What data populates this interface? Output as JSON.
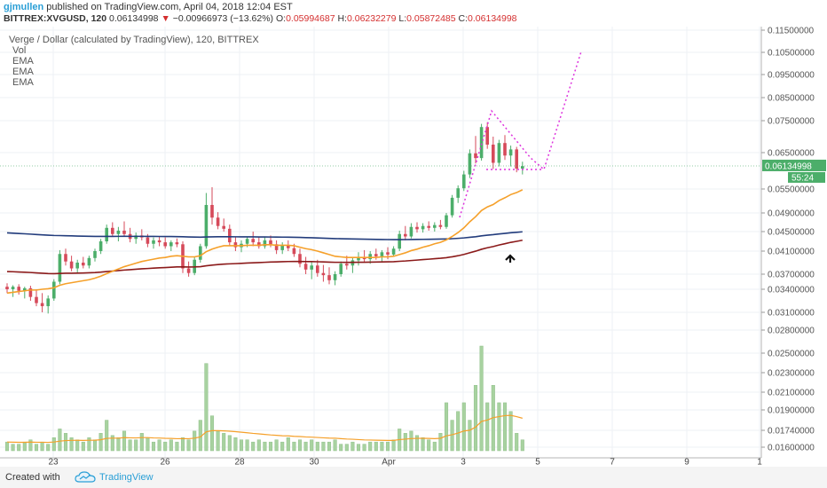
{
  "header": {
    "user": "gjmullen",
    "published": "published on TradingView.com, April 04, 2018 12:04 EST",
    "symbol": "BITTREX:XVGUSD, 120",
    "last": "0.06134998",
    "change_arrow": "▼",
    "change": "−0.00966973 (−13.62%)",
    "o_label": "O:",
    "o_value": "0.05994687",
    "h_label": "H:",
    "h_value": "0.06232279",
    "l_label": "L:",
    "l_value": "0.05872485",
    "c_label": "C:",
    "c_value": "0.06134998"
  },
  "legend": {
    "title": "Verge / Dollar (calculated by TradingView), 120, BITTREX",
    "items": [
      "Vol",
      "EMA",
      "EMA",
      "EMA"
    ]
  },
  "footer": {
    "created_with": "Created with",
    "brand": "TradingView"
  },
  "colors": {
    "up": "#4cae6a",
    "down": "#d64a5a",
    "vol_bar": "#a8d2a0",
    "ema_short": "#f5a02a",
    "ema_mid": "#8b1a1a",
    "ema_long": "#223c7c",
    "drawing": "#dd33dd",
    "price_label": "#4cae6a"
  },
  "chart_data": {
    "type": "candlestick",
    "y_axis_ticks": [
      "0.11500000",
      "0.10500000",
      "0.09500000",
      "0.08500000",
      "0.07500000",
      "0.06500000",
      "0.05500000",
      "0.04900000",
      "0.04500000",
      "0.04100000",
      "0.03700000",
      "0.03400000",
      "0.03100000",
      "0.02800000",
      "0.02500000",
      "0.02300000",
      "0.02100000",
      "0.01900000",
      "0.01740000",
      "0.01600000"
    ],
    "x_axis_ticks": [
      "23",
      "26",
      "28",
      "30",
      "Apr",
      "3",
      "5",
      "7",
      "9",
      "1"
    ],
    "current_price_label": "0.06134998",
    "countdown_label": "55:24",
    "grid": true,
    "candles": [
      {
        "o": 0.0345,
        "h": 0.0352,
        "l": 0.0335,
        "c": 0.034
      },
      {
        "o": 0.034,
        "h": 0.0348,
        "l": 0.033,
        "c": 0.0345
      },
      {
        "o": 0.0345,
        "h": 0.035,
        "l": 0.0333,
        "c": 0.0338
      },
      {
        "o": 0.0338,
        "h": 0.0345,
        "l": 0.0328,
        "c": 0.0342
      },
      {
        "o": 0.0342,
        "h": 0.0347,
        "l": 0.0325,
        "c": 0.033
      },
      {
        "o": 0.033,
        "h": 0.034,
        "l": 0.0318,
        "c": 0.0322
      },
      {
        "o": 0.0322,
        "h": 0.0335,
        "l": 0.031,
        "c": 0.0318
      },
      {
        "o": 0.0318,
        "h": 0.0332,
        "l": 0.0308,
        "c": 0.0328
      },
      {
        "o": 0.0328,
        "h": 0.036,
        "l": 0.0325,
        "c": 0.0355
      },
      {
        "o": 0.0355,
        "h": 0.0412,
        "l": 0.035,
        "c": 0.0405
      },
      {
        "o": 0.0405,
        "h": 0.0415,
        "l": 0.0385,
        "c": 0.0392
      },
      {
        "o": 0.0392,
        "h": 0.0402,
        "l": 0.0375,
        "c": 0.038
      },
      {
        "o": 0.038,
        "h": 0.0395,
        "l": 0.0372,
        "c": 0.039
      },
      {
        "o": 0.039,
        "h": 0.04,
        "l": 0.038,
        "c": 0.0385
      },
      {
        "o": 0.0385,
        "h": 0.0402,
        "l": 0.038,
        "c": 0.0398
      },
      {
        "o": 0.0398,
        "h": 0.0415,
        "l": 0.0392,
        "c": 0.041
      },
      {
        "o": 0.041,
        "h": 0.0435,
        "l": 0.0405,
        "c": 0.043
      },
      {
        "o": 0.043,
        "h": 0.0465,
        "l": 0.0425,
        "c": 0.0458
      },
      {
        "o": 0.0458,
        "h": 0.047,
        "l": 0.044,
        "c": 0.0445
      },
      {
        "o": 0.0445,
        "h": 0.046,
        "l": 0.043,
        "c": 0.0452
      },
      {
        "o": 0.0452,
        "h": 0.0472,
        "l": 0.044,
        "c": 0.0445
      },
      {
        "o": 0.0445,
        "h": 0.0458,
        "l": 0.0428,
        "c": 0.0435
      },
      {
        "o": 0.0435,
        "h": 0.0448,
        "l": 0.0425,
        "c": 0.0442
      },
      {
        "o": 0.0442,
        "h": 0.0455,
        "l": 0.0432,
        "c": 0.0438
      },
      {
        "o": 0.0438,
        "h": 0.0445,
        "l": 0.0418,
        "c": 0.0425
      },
      {
        "o": 0.0425,
        "h": 0.0438,
        "l": 0.0415,
        "c": 0.0432
      },
      {
        "o": 0.0432,
        "h": 0.044,
        "l": 0.042,
        "c": 0.0428
      },
      {
        "o": 0.0428,
        "h": 0.0438,
        "l": 0.0415,
        "c": 0.042
      },
      {
        "o": 0.042,
        "h": 0.0432,
        "l": 0.041,
        "c": 0.0428
      },
      {
        "o": 0.0428,
        "h": 0.0436,
        "l": 0.0418,
        "c": 0.0424
      },
      {
        "o": 0.0424,
        "h": 0.043,
        "l": 0.0372,
        "c": 0.038
      },
      {
        "o": 0.038,
        "h": 0.0392,
        "l": 0.0365,
        "c": 0.0372
      },
      {
        "o": 0.0372,
        "h": 0.04,
        "l": 0.0368,
        "c": 0.0395
      },
      {
        "o": 0.0395,
        "h": 0.0425,
        "l": 0.039,
        "c": 0.042
      },
      {
        "o": 0.042,
        "h": 0.054,
        "l": 0.0415,
        "c": 0.051
      },
      {
        "o": 0.051,
        "h": 0.0555,
        "l": 0.0465,
        "c": 0.048
      },
      {
        "o": 0.048,
        "h": 0.0492,
        "l": 0.0455,
        "c": 0.0462
      },
      {
        "o": 0.0462,
        "h": 0.0478,
        "l": 0.045,
        "c": 0.0456
      },
      {
        "o": 0.0456,
        "h": 0.0465,
        "l": 0.042,
        "c": 0.0428
      },
      {
        "o": 0.0428,
        "h": 0.044,
        "l": 0.041,
        "c": 0.0418
      },
      {
        "o": 0.0418,
        "h": 0.0432,
        "l": 0.0408,
        "c": 0.0425
      },
      {
        "o": 0.0425,
        "h": 0.044,
        "l": 0.0418,
        "c": 0.0435
      },
      {
        "o": 0.0435,
        "h": 0.045,
        "l": 0.042,
        "c": 0.0428
      },
      {
        "o": 0.0428,
        "h": 0.044,
        "l": 0.0415,
        "c": 0.042
      },
      {
        "o": 0.042,
        "h": 0.0438,
        "l": 0.0415,
        "c": 0.0432
      },
      {
        "o": 0.0432,
        "h": 0.0442,
        "l": 0.0418,
        "c": 0.0424
      },
      {
        "o": 0.0424,
        "h": 0.0432,
        "l": 0.0405,
        "c": 0.0412
      },
      {
        "o": 0.0412,
        "h": 0.0428,
        "l": 0.0405,
        "c": 0.0422
      },
      {
        "o": 0.0422,
        "h": 0.0432,
        "l": 0.041,
        "c": 0.0416
      },
      {
        "o": 0.0416,
        "h": 0.0425,
        "l": 0.04,
        "c": 0.0405
      },
      {
        "o": 0.0405,
        "h": 0.0415,
        "l": 0.0382,
        "c": 0.0388
      },
      {
        "o": 0.0388,
        "h": 0.04,
        "l": 0.037,
        "c": 0.0378
      },
      {
        "o": 0.0378,
        "h": 0.0392,
        "l": 0.036,
        "c": 0.0385
      },
      {
        "o": 0.0385,
        "h": 0.0395,
        "l": 0.0365,
        "c": 0.0372
      },
      {
        "o": 0.0372,
        "h": 0.0386,
        "l": 0.0355,
        "c": 0.0368
      },
      {
        "o": 0.0368,
        "h": 0.0382,
        "l": 0.035,
        "c": 0.0358
      },
      {
        "o": 0.0358,
        "h": 0.0375,
        "l": 0.0348,
        "c": 0.037
      },
      {
        "o": 0.037,
        "h": 0.0392,
        "l": 0.0365,
        "c": 0.0388
      },
      {
        "o": 0.0388,
        "h": 0.0402,
        "l": 0.0378,
        "c": 0.0385
      },
      {
        "o": 0.0385,
        "h": 0.0398,
        "l": 0.0372,
        "c": 0.0394
      },
      {
        "o": 0.0394,
        "h": 0.0408,
        "l": 0.0385,
        "c": 0.04
      },
      {
        "o": 0.04,
        "h": 0.0412,
        "l": 0.039,
        "c": 0.0396
      },
      {
        "o": 0.0396,
        "h": 0.041,
        "l": 0.0388,
        "c": 0.0405
      },
      {
        "o": 0.0405,
        "h": 0.0415,
        "l": 0.0395,
        "c": 0.0401
      },
      {
        "o": 0.0401,
        "h": 0.0412,
        "l": 0.0392,
        "c": 0.0408
      },
      {
        "o": 0.0408,
        "h": 0.0418,
        "l": 0.0396,
        "c": 0.0404
      },
      {
        "o": 0.0404,
        "h": 0.042,
        "l": 0.04,
        "c": 0.0415
      },
      {
        "o": 0.0415,
        "h": 0.0452,
        "l": 0.041,
        "c": 0.0445
      },
      {
        "o": 0.0445,
        "h": 0.0462,
        "l": 0.0432,
        "c": 0.044
      },
      {
        "o": 0.044,
        "h": 0.0468,
        "l": 0.0436,
        "c": 0.046
      },
      {
        "o": 0.046,
        "h": 0.047,
        "l": 0.0448,
        "c": 0.0455
      },
      {
        "o": 0.0455,
        "h": 0.0468,
        "l": 0.0448,
        "c": 0.0462
      },
      {
        "o": 0.0462,
        "h": 0.0472,
        "l": 0.0452,
        "c": 0.0458
      },
      {
        "o": 0.0458,
        "h": 0.047,
        "l": 0.045,
        "c": 0.0464
      },
      {
        "o": 0.0464,
        "h": 0.0475,
        "l": 0.0455,
        "c": 0.046
      },
      {
        "o": 0.046,
        "h": 0.049,
        "l": 0.0456,
        "c": 0.0485
      },
      {
        "o": 0.0485,
        "h": 0.0535,
        "l": 0.048,
        "c": 0.0528
      },
      {
        "o": 0.0528,
        "h": 0.056,
        "l": 0.0515,
        "c": 0.0552
      },
      {
        "o": 0.0552,
        "h": 0.06,
        "l": 0.0545,
        "c": 0.059
      },
      {
        "o": 0.059,
        "h": 0.066,
        "l": 0.058,
        "c": 0.0648
      },
      {
        "o": 0.0648,
        "h": 0.0702,
        "l": 0.062,
        "c": 0.0635
      },
      {
        "o": 0.0635,
        "h": 0.074,
        "l": 0.0628,
        "c": 0.073
      },
      {
        "o": 0.073,
        "h": 0.0745,
        "l": 0.0662,
        "c": 0.0675
      },
      {
        "o": 0.0675,
        "h": 0.07,
        "l": 0.0605,
        "c": 0.0622
      },
      {
        "o": 0.0622,
        "h": 0.069,
        "l": 0.0612,
        "c": 0.068
      },
      {
        "o": 0.068,
        "h": 0.0705,
        "l": 0.063,
        "c": 0.0642
      },
      {
        "o": 0.0642,
        "h": 0.0672,
        "l": 0.0612,
        "c": 0.066
      },
      {
        "o": 0.066,
        "h": 0.0668,
        "l": 0.0596,
        "c": 0.0606
      },
      {
        "o": 0.0606,
        "h": 0.0625,
        "l": 0.059,
        "c": 0.0613
      }
    ],
    "volumes": [
      4,
      3,
      3,
      4,
      5,
      3,
      4,
      3,
      6,
      10,
      8,
      6,
      5,
      4,
      6,
      5,
      8,
      14,
      7,
      6,
      9,
      5,
      5,
      8,
      6,
      4,
      5,
      4,
      5,
      4,
      6,
      5,
      9,
      14,
      40,
      16,
      9,
      8,
      7,
      6,
      5,
      5,
      4,
      5,
      4,
      4,
      5,
      4,
      6,
      4,
      5,
      4,
      5,
      4,
      4,
      4,
      5,
      3,
      3,
      4,
      3,
      3,
      4,
      4,
      4,
      4,
      5,
      10,
      8,
      9,
      7,
      6,
      5,
      4,
      8,
      22,
      14,
      18,
      22,
      14,
      30,
      48,
      22,
      30,
      22,
      22,
      18,
      8,
      5
    ],
    "ema_short": [
      0.0335,
      0.0336,
      0.0337,
      0.0338,
      0.0339,
      0.0339,
      0.034,
      0.0341,
      0.0343,
      0.0348,
      0.0351,
      0.0353,
      0.0355,
      0.0357,
      0.0359,
      0.0362,
      0.0366,
      0.0371,
      0.0375,
      0.0379,
      0.0383,
      0.0386,
      0.0389,
      0.0392,
      0.0394,
      0.0396,
      0.0398,
      0.0399,
      0.0401,
      0.0402,
      0.0401,
      0.04,
      0.04,
      0.0402,
      0.0409,
      0.0414,
      0.0418,
      0.0421,
      0.0421,
      0.0421,
      0.0421,
      0.0422,
      0.0422,
      0.0422,
      0.0423,
      0.0423,
      0.0422,
      0.0422,
      0.0422,
      0.0421,
      0.0418,
      0.0415,
      0.0413,
      0.041,
      0.0407,
      0.0404,
      0.0401,
      0.04,
      0.0399,
      0.0399,
      0.0399,
      0.0399,
      0.0399,
      0.0399,
      0.04,
      0.04,
      0.0401,
      0.0404,
      0.0407,
      0.0411,
      0.0414,
      0.0418,
      0.0421,
      0.0425,
      0.0428,
      0.0433,
      0.044,
      0.0448,
      0.0458,
      0.0471,
      0.0482,
      0.0496,
      0.0505,
      0.0511,
      0.0521,
      0.0528,
      0.0536,
      0.0541,
      0.0548
    ]
  }
}
